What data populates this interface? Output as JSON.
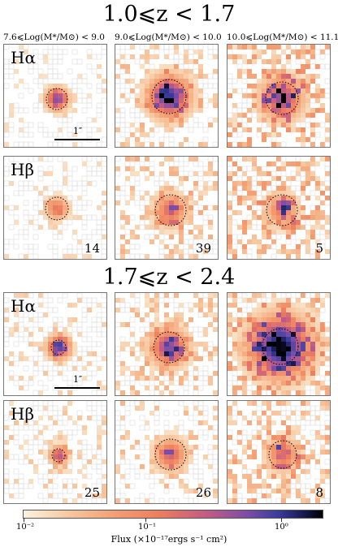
{
  "sections": [
    {
      "title": "1.0⩽z < 1.7",
      "row_labels": [
        "Hα",
        "Hβ"
      ],
      "counts": [
        "14",
        "39",
        "5"
      ]
    },
    {
      "title": "1.7⩽z < 2.4",
      "row_labels": [
        "Hα",
        "Hβ"
      ],
      "counts": [
        "25",
        "26",
        "8"
      ]
    }
  ],
  "mass_bins": [
    "7.6⩽Log(M*/M⊙) < 9.0",
    "9.0⩽Log(M*/M⊙) < 10.0",
    "10.0⩽Log(M*/M⊙) < 11.1"
  ],
  "scale_bar_label": "1″",
  "colorbar": {
    "tick_labels": [
      "10⁻²",
      "10⁻¹",
      "10⁰"
    ],
    "title": "Flux (×10⁻¹⁷ergs s⁻¹ cm²)",
    "colors": [
      "#fbf3df",
      "#f4a074",
      "#c05a86",
      "#3a3d9e",
      "#000000"
    ]
  }
}
